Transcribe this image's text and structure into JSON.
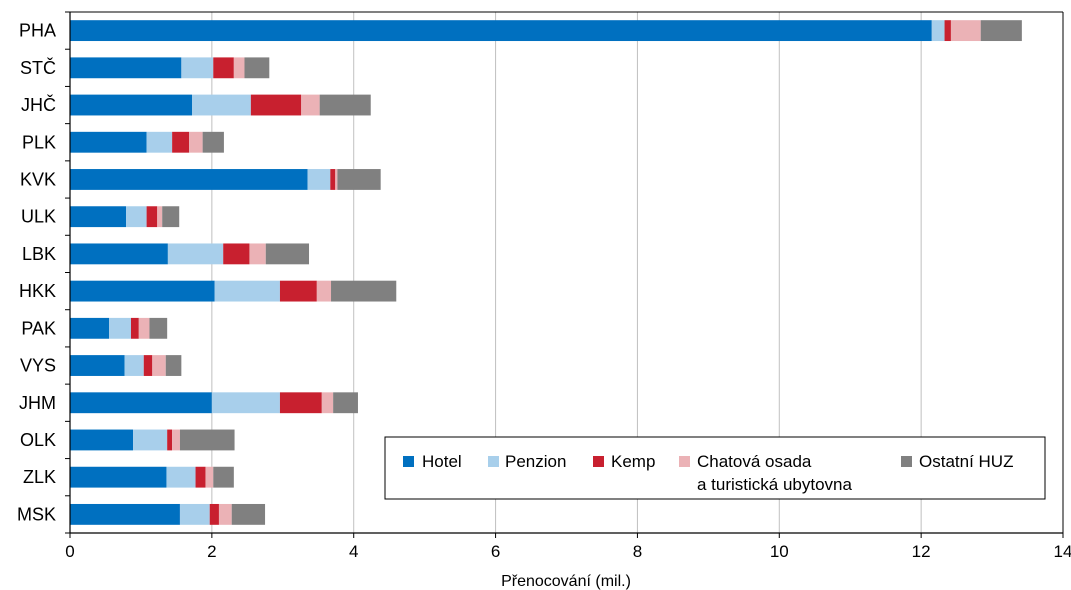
{
  "chart_data": {
    "type": "bar",
    "orientation": "horizontal",
    "stacked": true,
    "categories": [
      "PHA",
      "STČ",
      "JHČ",
      "PLK",
      "KVK",
      "ULK",
      "LBK",
      "HKK",
      "PAK",
      "VYS",
      "JHM",
      "OLK",
      "ZLK",
      "MSK"
    ],
    "series": [
      {
        "name": "Hotel",
        "color": "#0070c0",
        "values": [
          12.15,
          1.57,
          1.72,
          1.08,
          3.35,
          0.79,
          1.38,
          2.04,
          0.55,
          0.77,
          2.0,
          0.89,
          1.36,
          1.55
        ]
      },
      {
        "name": "Penzion",
        "color": "#a8cfeb",
        "values": [
          0.18,
          0.45,
          0.83,
          0.36,
          0.32,
          0.29,
          0.78,
          0.92,
          0.31,
          0.27,
          0.96,
          0.48,
          0.41,
          0.42
        ]
      },
      {
        "name": "Kemp",
        "color": "#c8202f",
        "values": [
          0.09,
          0.29,
          0.71,
          0.24,
          0.07,
          0.15,
          0.37,
          0.52,
          0.11,
          0.12,
          0.59,
          0.07,
          0.14,
          0.13
        ]
      },
      {
        "name": "Chatová osada a turistická ubytovna",
        "color": "#ebb2b6",
        "values": [
          0.42,
          0.15,
          0.26,
          0.19,
          0.03,
          0.07,
          0.23,
          0.2,
          0.15,
          0.19,
          0.16,
          0.11,
          0.11,
          0.18
        ]
      },
      {
        "name": "Ostatní HUZ",
        "color": "#808080",
        "values": [
          0.58,
          0.35,
          0.72,
          0.3,
          0.61,
          0.24,
          0.61,
          0.92,
          0.25,
          0.22,
          0.35,
          0.77,
          0.29,
          0.47
        ]
      }
    ],
    "xlabel": "Přenocování (mil.)",
    "xticks": [
      "0",
      "2",
      "4",
      "6",
      "8",
      "10",
      "12",
      "14"
    ],
    "xlim": [
      0,
      14
    ],
    "grid": "vertical",
    "legend": {
      "placement": "bottom-right",
      "entries": [
        "Hotel",
        "Penzion",
        "Kemp",
        "Chatová osada",
        "a turistická ubytovna",
        "Ostatní HUZ"
      ]
    }
  }
}
